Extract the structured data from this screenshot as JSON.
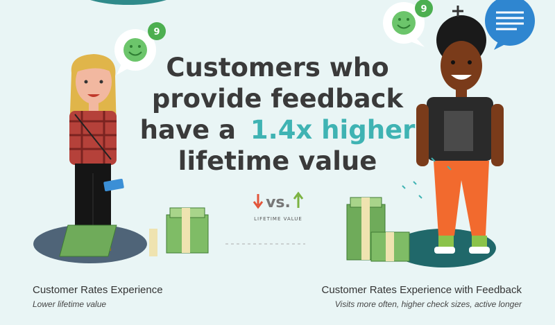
{
  "headline": [
    "Customers who",
    "provide feedback",
    "have a",
    "1.4x higher",
    "lifetime value"
  ],
  "left_bubble_badge": "9",
  "right_bubble_badge": "9",
  "comparison": {
    "vs": "vs.",
    "label": "LIFETIME VALUE"
  },
  "left_caption": {
    "title": "Customer Rates Experience",
    "subtitle": "Lower lifetime value"
  },
  "right_caption": {
    "title": "Customer Rates Experience with Feedback",
    "subtitle": "Visits more often, higher check sizes, active longer"
  }
}
